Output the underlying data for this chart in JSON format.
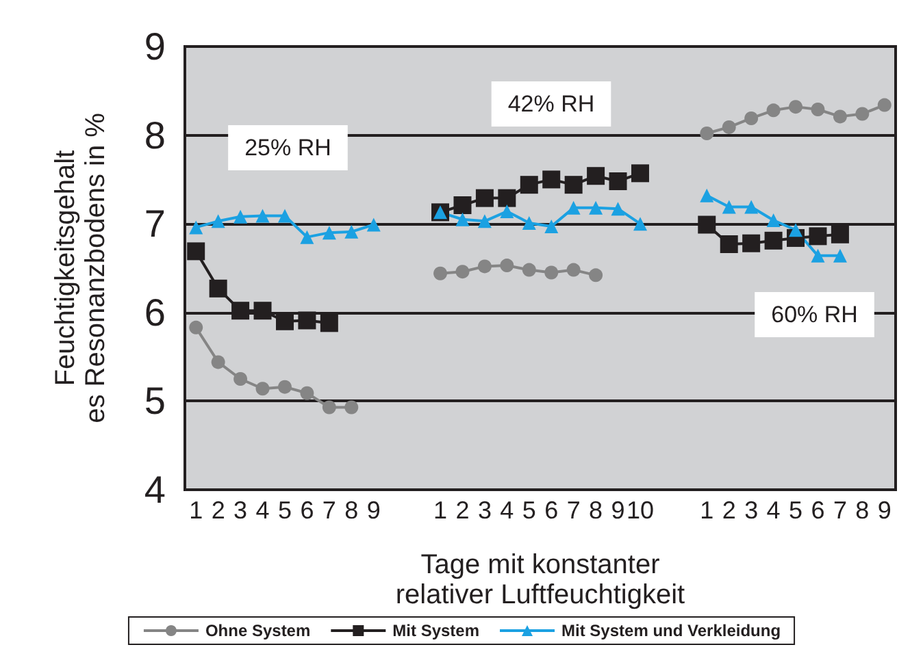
{
  "chart_data": {
    "type": "line",
    "xlabel": "Tage mit konstanter\nrelativer Luftfeuchtigkeit",
    "ylabel": "Feuchtigkeitsgehalt\nes Resonanzbodens in %",
    "categories": [
      "1",
      "2",
      "3",
      "4",
      "5",
      "6",
      "7",
      "8",
      "9",
      null,
      null,
      "1",
      "2",
      "3",
      "4",
      "5",
      "6",
      "7",
      "8",
      "9",
      "10",
      null,
      null,
      "1",
      "2",
      "3",
      "4",
      "5",
      "6",
      "7",
      "8",
      "9"
    ],
    "series": [
      {
        "name": "Ohne System",
        "color": "#858585",
        "marker": "circle",
        "values": [
          5.83,
          5.44,
          5.25,
          5.14,
          5.16,
          5.09,
          4.93,
          4.93,
          null,
          null,
          null,
          6.44,
          6.46,
          6.52,
          6.53,
          6.48,
          6.45,
          6.48,
          6.42,
          null,
          null,
          null,
          null,
          8.02,
          8.09,
          8.19,
          8.28,
          8.32,
          8.29,
          8.21,
          8.24,
          8.34
        ]
      },
      {
        "name": "Mit System",
        "color": "#231f20",
        "marker": "square",
        "values": [
          6.69,
          6.27,
          6.02,
          6.02,
          5.9,
          5.91,
          5.88,
          null,
          null,
          null,
          null,
          7.13,
          7.21,
          7.29,
          7.29,
          7.44,
          7.5,
          7.44,
          7.54,
          7.48,
          7.57,
          null,
          null,
          6.99,
          6.77,
          6.78,
          6.81,
          6.84,
          6.86,
          6.88,
          null,
          null
        ]
      },
      {
        "name": "Mit System und Verkleidung",
        "color": "#1ba1e2",
        "marker": "triangle",
        "values": [
          6.96,
          7.03,
          7.08,
          7.09,
          7.09,
          6.85,
          6.9,
          6.91,
          6.99,
          null,
          null,
          7.13,
          7.05,
          7.03,
          7.14,
          7.01,
          6.97,
          7.18,
          7.18,
          7.17,
          7.0,
          null,
          null,
          7.32,
          7.19,
          7.19,
          7.04,
          6.93,
          6.64,
          6.64,
          null,
          null
        ]
      }
    ],
    "ylim": [
      4,
      9
    ],
    "yticks": [
      4,
      5,
      6,
      7,
      8,
      9
    ],
    "grid": "y",
    "legend": "bottom",
    "line_style": "solid",
    "annotations": [
      "25% RH",
      "42% RH",
      "60% RH"
    ]
  }
}
